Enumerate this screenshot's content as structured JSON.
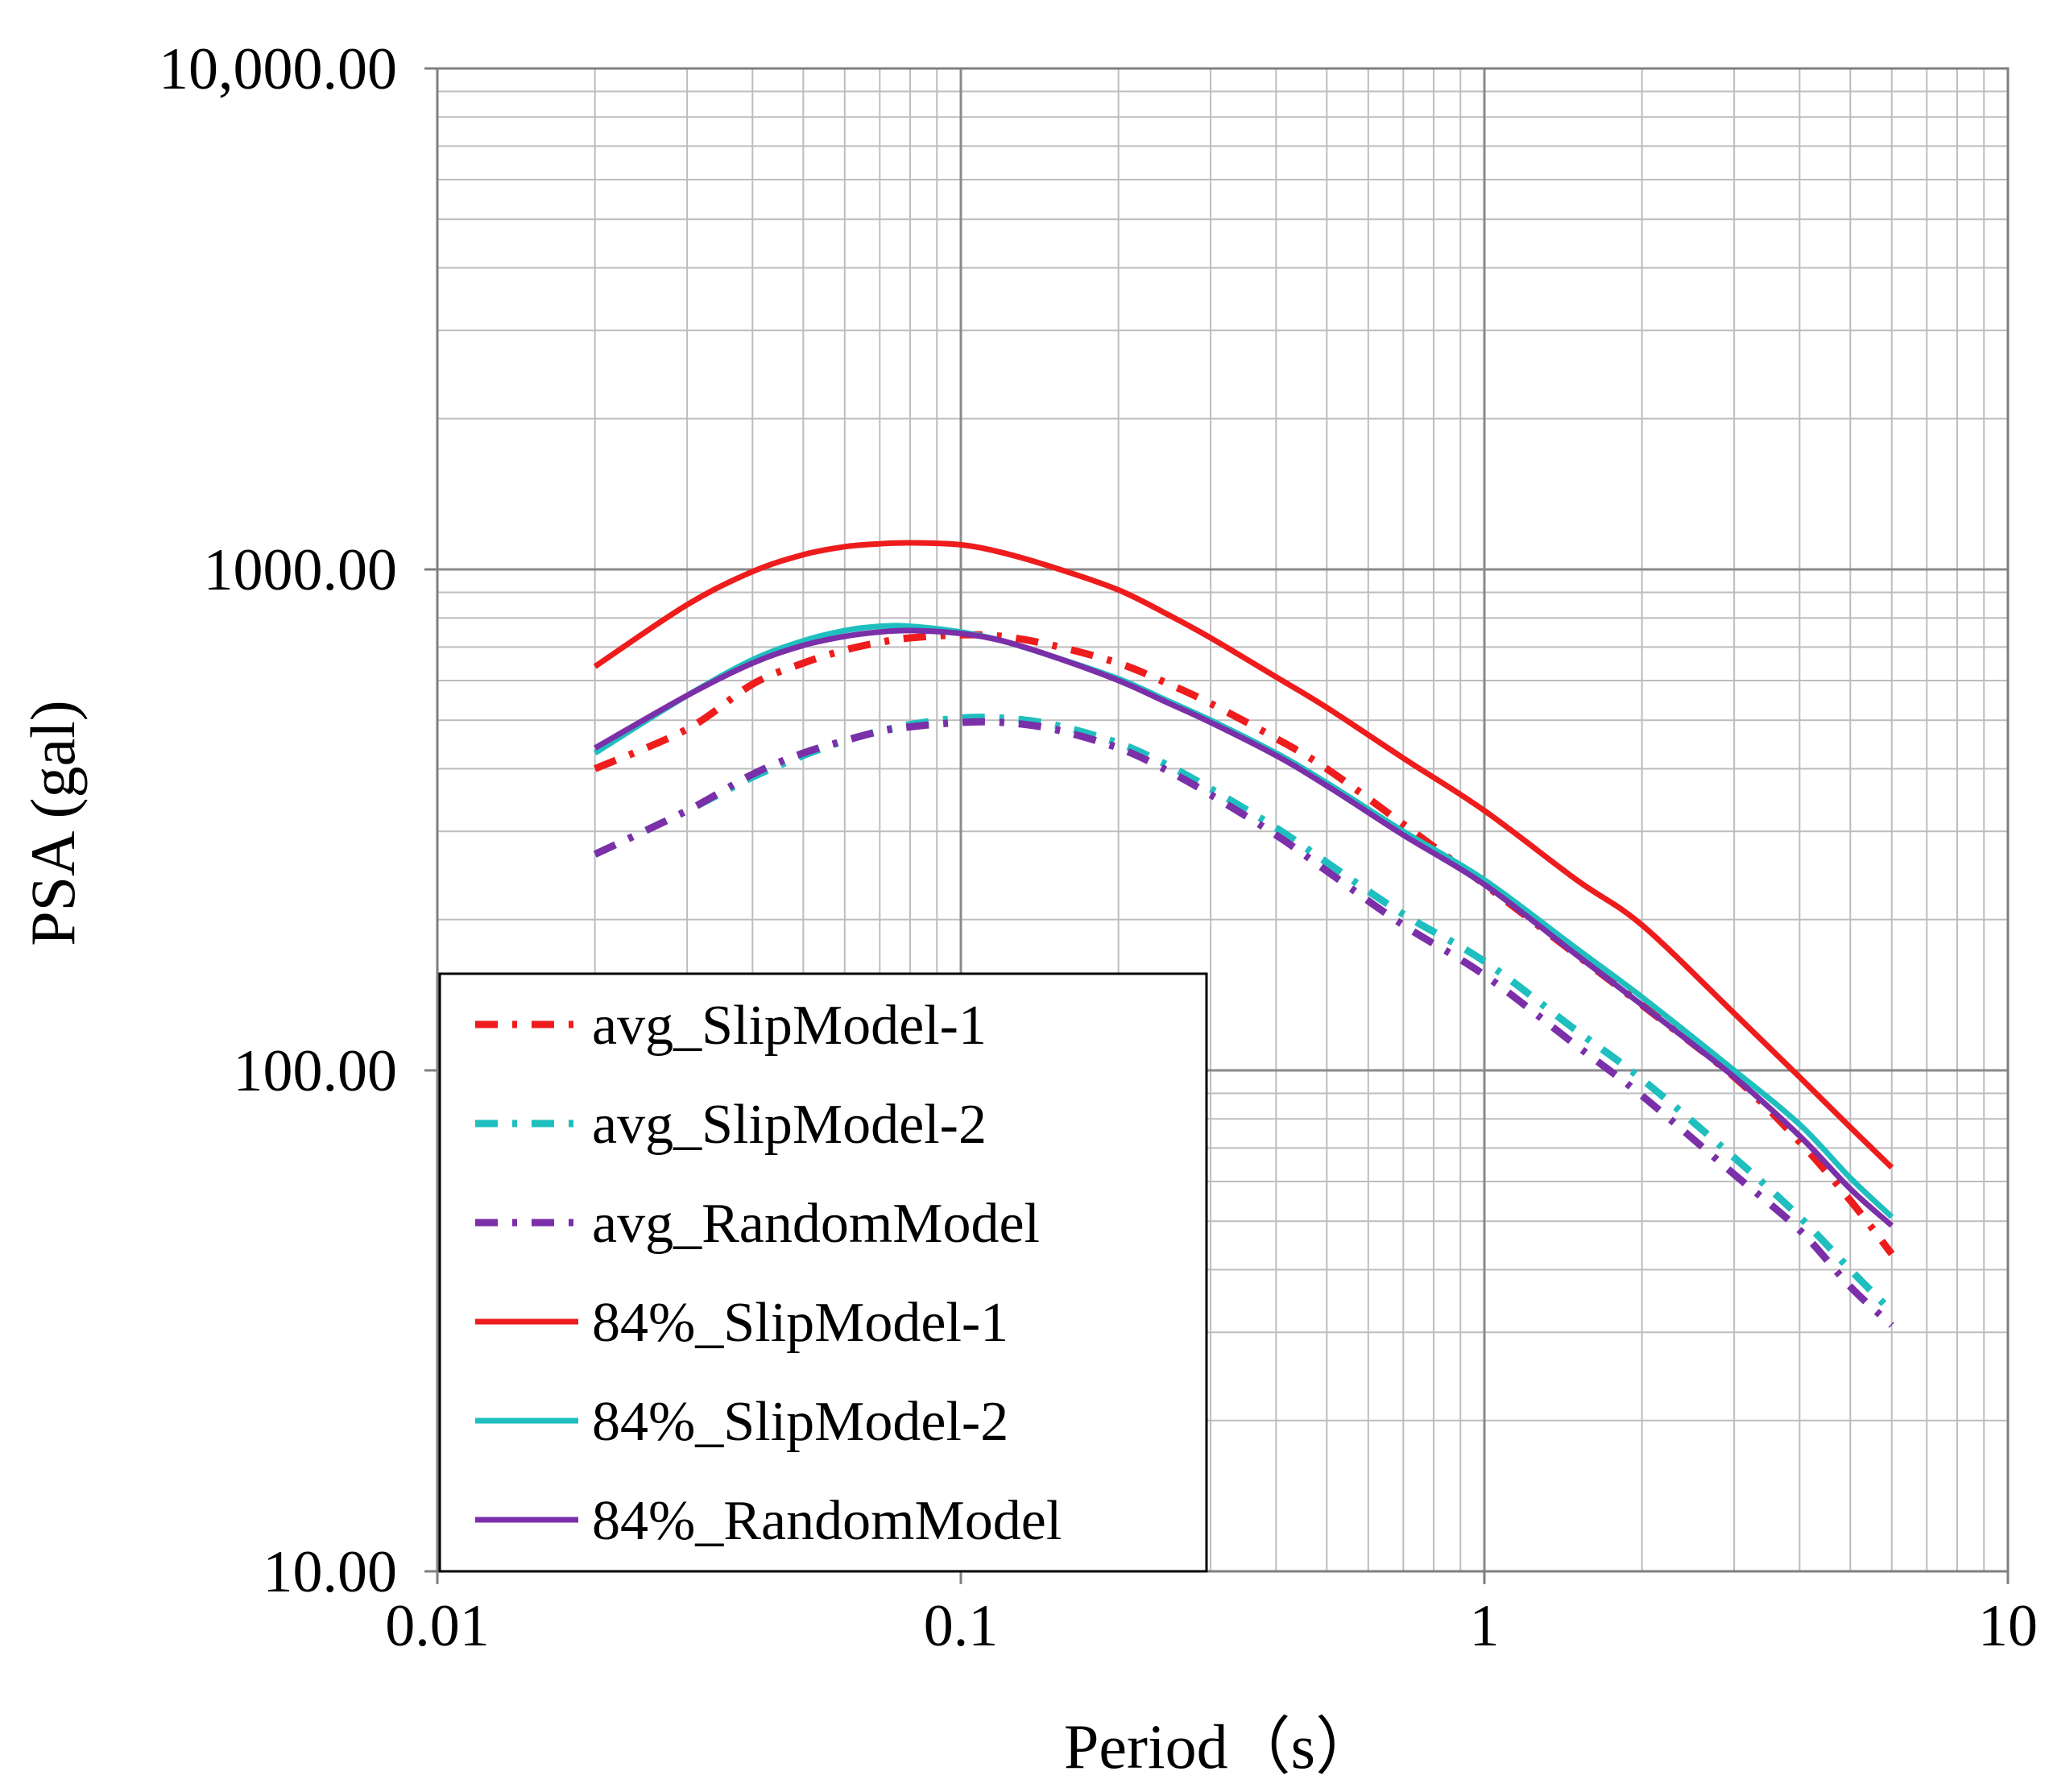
{
  "chart_data": {
    "type": "line",
    "title": "",
    "xlabel": "Period（s）",
    "ylabel": "PSA (gal)",
    "xscale": "log",
    "yscale": "log",
    "xlim": [
      0.01,
      10
    ],
    "ylim": [
      10,
      10000
    ],
    "grid": true,
    "legend_position": "bottom-left",
    "x_ticks": [
      {
        "value": 0.01,
        "label": "0.01"
      },
      {
        "value": 0.1,
        "label": "0.1"
      },
      {
        "value": 1,
        "label": "1"
      },
      {
        "value": 10,
        "label": "10"
      }
    ],
    "y_ticks": [
      {
        "value": 10,
        "label": "10.00"
      },
      {
        "value": 100,
        "label": "100.00"
      },
      {
        "value": 1000,
        "label": "1000.00"
      },
      {
        "value": 10000,
        "label": "10,000.00"
      }
    ],
    "series": [
      {
        "name": "avg_SlipModel-1",
        "color": "#ee1c1c",
        "style": "dashdot",
        "x": [
          0.02,
          0.03,
          0.04,
          0.05,
          0.06,
          0.07,
          0.08,
          0.1,
          0.12,
          0.15,
          0.2,
          0.25,
          0.3,
          0.4,
          0.5,
          0.7,
          1.0,
          1.5,
          2.0,
          3.0,
          4.0,
          5.0,
          6.0
        ],
        "y": [
          400,
          480,
          590,
          650,
          690,
          715,
          730,
          740,
          735,
          705,
          650,
          590,
          540,
          460,
          400,
          310,
          235,
          170,
          135,
          97,
          72,
          55,
          43
        ]
      },
      {
        "name": "avg_SlipModel-2",
        "color": "#1fbfbf",
        "style": "dashdot",
        "x": [
          0.02,
          0.03,
          0.04,
          0.05,
          0.06,
          0.07,
          0.08,
          0.1,
          0.12,
          0.15,
          0.2,
          0.25,
          0.3,
          0.4,
          0.5,
          0.7,
          1.0,
          1.5,
          2.0,
          3.0,
          4.0,
          5.0,
          6.0
        ],
        "y": [
          270,
          330,
          385,
          425,
          455,
          475,
          490,
          505,
          505,
          490,
          450,
          405,
          365,
          305,
          260,
          205,
          165,
          120,
          96,
          67,
          51,
          40,
          33
        ]
      },
      {
        "name": "avg_RandomModel",
        "color": "#7b2fa8",
        "style": "dashdot",
        "x": [
          0.02,
          0.03,
          0.04,
          0.05,
          0.06,
          0.07,
          0.08,
          0.1,
          0.12,
          0.15,
          0.2,
          0.25,
          0.3,
          0.4,
          0.5,
          0.7,
          1.0,
          1.5,
          2.0,
          3.0,
          4.0,
          5.0,
          6.0
        ],
        "y": [
          270,
          330,
          390,
          430,
          455,
          475,
          485,
          495,
          495,
          480,
          440,
          395,
          355,
          295,
          250,
          195,
          155,
          112,
          89,
          62,
          48,
          37,
          31
        ]
      },
      {
        "name": "84%_SlipModel-1",
        "color": "#ee1c1c",
        "style": "solid",
        "x": [
          0.02,
          0.03,
          0.04,
          0.05,
          0.06,
          0.07,
          0.08,
          0.1,
          0.12,
          0.15,
          0.2,
          0.25,
          0.3,
          0.4,
          0.5,
          0.7,
          1.0,
          1.5,
          2.0,
          3.0,
          4.0,
          5.0,
          6.0
        ],
        "y": [
          640,
          850,
          990,
          1070,
          1110,
          1125,
          1130,
          1120,
          1080,
          1010,
          910,
          810,
          730,
          610,
          530,
          420,
          330,
          240,
          195,
          130,
          97,
          77,
          64
        ]
      },
      {
        "name": "84%_SlipModel-2",
        "color": "#1fbfbf",
        "style": "solid",
        "x": [
          0.02,
          0.03,
          0.04,
          0.05,
          0.06,
          0.07,
          0.08,
          0.1,
          0.12,
          0.15,
          0.2,
          0.25,
          0.3,
          0.4,
          0.5,
          0.7,
          1.0,
          1.5,
          2.0,
          3.0,
          4.0,
          5.0,
          6.0
        ],
        "y": [
          430,
          560,
          660,
          720,
          755,
          770,
          770,
          750,
          720,
          670,
          605,
          545,
          500,
          430,
          375,
          300,
          240,
          175,
          140,
          100,
          78,
          61,
          51
        ]
      },
      {
        "name": "84%_RandomModel",
        "color": "#7b2fa8",
        "style": "solid",
        "x": [
          0.02,
          0.03,
          0.04,
          0.05,
          0.06,
          0.07,
          0.08,
          0.1,
          0.12,
          0.15,
          0.2,
          0.25,
          0.3,
          0.4,
          0.5,
          0.7,
          1.0,
          1.5,
          2.0,
          3.0,
          4.0,
          5.0,
          6.0
        ],
        "y": [
          440,
          560,
          650,
          705,
          735,
          750,
          755,
          745,
          720,
          670,
          600,
          540,
          495,
          425,
          370,
          295,
          235,
          170,
          135,
          97,
          74,
          58,
          49
        ]
      }
    ]
  }
}
